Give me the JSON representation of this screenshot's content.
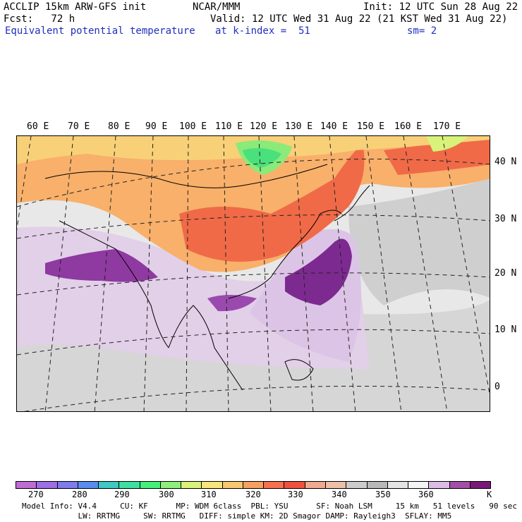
{
  "header": {
    "line1_left": "ACCLIP 15km ARW-GFS init",
    "line1_mid": "NCAR/MMM",
    "line1_right": "Init: 12 UTC Sun 28 Aug 22",
    "line2_left": "Fcst:   72 h",
    "line2_right": "Valid: 12 UTC Wed 31 Aug 22 (21 KST Wed 31 Aug 22)",
    "field": "Equivalent potential temperature",
    "level": "at k-index =  51",
    "smooth": "sm= 2"
  },
  "map": {
    "lon_labels": [
      "60 E",
      "70 E",
      "80 E",
      "90 E",
      "100 E",
      "110 E",
      "120 E",
      "130 E",
      "140 E",
      "150 E",
      "160 E",
      "170 E"
    ],
    "lat_labels": [
      "40 N",
      "30 N",
      "20 N",
      "10 N",
      "0"
    ]
  },
  "colorbar": {
    "colors": [
      "#c06cd6",
      "#9e6ee6",
      "#7e7cee",
      "#5a8cf0",
      "#3fc8c4",
      "#3de0a0",
      "#46ee7a",
      "#8ef07a",
      "#d8f27a",
      "#f8e678",
      "#f8c870",
      "#f8a060",
      "#f87050",
      "#f05040",
      "#f0a890",
      "#ecc0a8",
      "#cccccc",
      "#b8b8b8",
      "#e4e4e4",
      "#f4f4f4",
      "#dcbce4",
      "#a44ea8",
      "#7a1a78"
    ],
    "labels": [
      "270",
      "280",
      "290",
      "300",
      "310",
      "320",
      "330",
      "340",
      "350",
      "360"
    ],
    "unit": "K"
  },
  "footer": {
    "line1": "Model Info: V4.4     CU: KF      MP: WDM 6class  PBL: YSU      SF: Noah LSM     15 km   51 levels   90 sec",
    "line2": "            LW: RRTMG     SW: RRTMG   DIFF: simple KM: 2D Smagor DAMP: Rayleigh3  SFLAY: MM5"
  }
}
